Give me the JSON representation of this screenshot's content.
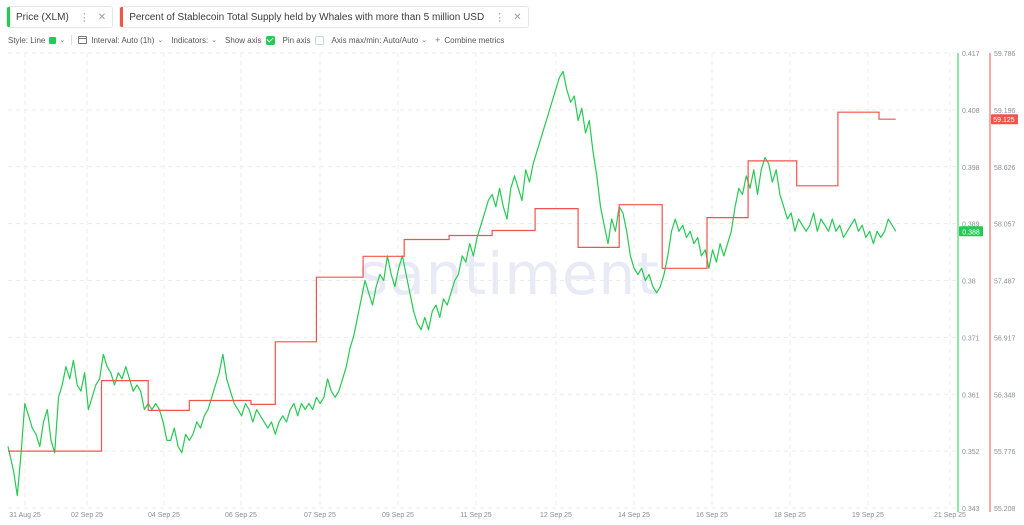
{
  "tabs": [
    {
      "label": "Price (XLM)",
      "color": "#26c953",
      "menu_icon": "kebab-icon",
      "close_icon": "close-icon"
    },
    {
      "label": "Percent of Stablecoin Total Supply held by Whales with more than 5 million USD",
      "color": "#f0554c",
      "menu_icon": "kebab-icon",
      "close_icon": "close-icon"
    }
  ],
  "toolbar": {
    "style_label": "Style: Line",
    "interval_label": "Interval: Auto (1h)",
    "indicators_label": "Indicators:",
    "show_axis_label": "Show axis",
    "show_axis_checked": true,
    "pin_axis_label": "Pin axis",
    "pin_axis_checked": false,
    "axis_minmax_label": "Axis max/min: Auto/Auto",
    "combine_label": "Combine metrics"
  },
  "watermark": "santiment",
  "chart_data": {
    "type": "line",
    "x_tick_labels": [
      "31 Aug 25",
      "02 Sep 25",
      "04 Sep 25",
      "06 Sep 25",
      "07 Sep 25",
      "09 Sep 25",
      "11 Sep 25",
      "12 Sep 25",
      "14 Sep 25",
      "16 Sep 25",
      "18 Sep 25",
      "19 Sep 25",
      "21 Sep 25"
    ],
    "x_range_hours": [
      0,
      504
    ],
    "y_left": {
      "ticks": [
        "0.417",
        "0.408",
        "0.398",
        "0.389",
        "0.38",
        "0.371",
        "0.361",
        "0.352",
        "0.343"
      ],
      "range": [
        0.343,
        0.417
      ]
    },
    "y_right": {
      "ticks": [
        "59.786",
        "59.196",
        "58.626",
        "58.057",
        "57.487",
        "56.917",
        "56.348",
        "55.776",
        "55.208"
      ],
      "range": [
        55.208,
        59.786
      ]
    },
    "current_price_label": "0.388",
    "current_whale_label": "59.125",
    "series": [
      {
        "name": "Price (XLM)",
        "color": "#26c953",
        "axis": "left",
        "hour_points": [
          [
            0,
            0.353
          ],
          [
            3,
            0.349
          ],
          [
            5,
            0.345
          ],
          [
            7,
            0.352
          ],
          [
            9,
            0.36
          ],
          [
            11,
            0.358
          ],
          [
            13,
            0.356
          ],
          [
            15,
            0.355
          ],
          [
            17,
            0.353
          ],
          [
            19,
            0.357
          ],
          [
            21,
            0.359
          ],
          [
            23,
            0.354
          ],
          [
            25,
            0.352
          ],
          [
            27,
            0.361
          ],
          [
            29,
            0.363
          ],
          [
            31,
            0.366
          ],
          [
            33,
            0.364
          ],
          [
            35,
            0.367
          ],
          [
            37,
            0.363
          ],
          [
            39,
            0.362
          ],
          [
            41,
            0.365
          ],
          [
            43,
            0.359
          ],
          [
            45,
            0.361
          ],
          [
            47,
            0.363
          ],
          [
            49,
            0.364
          ],
          [
            51,
            0.368
          ],
          [
            53,
            0.366
          ],
          [
            55,
            0.365
          ],
          [
            57,
            0.363
          ],
          [
            59,
            0.365
          ],
          [
            61,
            0.364
          ],
          [
            63,
            0.366
          ],
          [
            65,
            0.364
          ],
          [
            67,
            0.362
          ],
          [
            69,
            0.363
          ],
          [
            71,
            0.362
          ],
          [
            73,
            0.359
          ],
          [
            75,
            0.36
          ],
          [
            77,
            0.359
          ],
          [
            79,
            0.36
          ],
          [
            81,
            0.359
          ],
          [
            83,
            0.357
          ],
          [
            85,
            0.354
          ],
          [
            87,
            0.354
          ],
          [
            89,
            0.356
          ],
          [
            91,
            0.353
          ],
          [
            93,
            0.352
          ],
          [
            95,
            0.355
          ],
          [
            97,
            0.354
          ],
          [
            99,
            0.355
          ],
          [
            101,
            0.357
          ],
          [
            103,
            0.356
          ],
          [
            105,
            0.358
          ],
          [
            107,
            0.359
          ],
          [
            109,
            0.361
          ],
          [
            111,
            0.363
          ],
          [
            113,
            0.365
          ],
          [
            115,
            0.368
          ],
          [
            117,
            0.364
          ],
          [
            119,
            0.362
          ],
          [
            121,
            0.36
          ],
          [
            123,
            0.359
          ],
          [
            125,
            0.358
          ],
          [
            127,
            0.36
          ],
          [
            129,
            0.359
          ],
          [
            131,
            0.357
          ],
          [
            133,
            0.359
          ],
          [
            135,
            0.358
          ],
          [
            137,
            0.357
          ],
          [
            139,
            0.356
          ],
          [
            141,
            0.357
          ],
          [
            143,
            0.355
          ],
          [
            145,
            0.357
          ],
          [
            147,
            0.358
          ],
          [
            149,
            0.357
          ],
          [
            151,
            0.359
          ],
          [
            153,
            0.36
          ],
          [
            155,
            0.358
          ],
          [
            157,
            0.36
          ],
          [
            159,
            0.359
          ],
          [
            161,
            0.36
          ],
          [
            163,
            0.359
          ],
          [
            165,
            0.361
          ],
          [
            167,
            0.36
          ],
          [
            169,
            0.361
          ],
          [
            171,
            0.364
          ],
          [
            173,
            0.362
          ],
          [
            175,
            0.361
          ],
          [
            177,
            0.362
          ],
          [
            179,
            0.364
          ],
          [
            181,
            0.366
          ],
          [
            183,
            0.369
          ],
          [
            185,
            0.371
          ],
          [
            187,
            0.374
          ],
          [
            189,
            0.377
          ],
          [
            191,
            0.38
          ],
          [
            193,
            0.378
          ],
          [
            195,
            0.376
          ],
          [
            197,
            0.379
          ],
          [
            199,
            0.381
          ],
          [
            201,
            0.38
          ],
          [
            203,
            0.384
          ],
          [
            205,
            0.381
          ],
          [
            207,
            0.379
          ],
          [
            209,
            0.382
          ],
          [
            211,
            0.384
          ],
          [
            213,
            0.381
          ],
          [
            215,
            0.378
          ],
          [
            217,
            0.375
          ],
          [
            219,
            0.373
          ],
          [
            221,
            0.372
          ],
          [
            223,
            0.374
          ],
          [
            225,
            0.372
          ],
          [
            227,
            0.375
          ],
          [
            229,
            0.376
          ],
          [
            231,
            0.374
          ],
          [
            233,
            0.377
          ],
          [
            235,
            0.376
          ],
          [
            237,
            0.378
          ],
          [
            239,
            0.38
          ],
          [
            241,
            0.381
          ],
          [
            243,
            0.384
          ],
          [
            245,
            0.383
          ],
          [
            247,
            0.386
          ],
          [
            249,
            0.384
          ],
          [
            251,
            0.387
          ],
          [
            253,
            0.389
          ],
          [
            255,
            0.391
          ],
          [
            257,
            0.393
          ],
          [
            259,
            0.394
          ],
          [
            261,
            0.392
          ],
          [
            263,
            0.395
          ],
          [
            265,
            0.392
          ],
          [
            267,
            0.39
          ],
          [
            269,
            0.395
          ],
          [
            271,
            0.397
          ],
          [
            273,
            0.395
          ],
          [
            275,
            0.393
          ],
          [
            277,
            0.398
          ],
          [
            279,
            0.396
          ],
          [
            281,
            0.399
          ],
          [
            283,
            0.401
          ],
          [
            285,
            0.403
          ],
          [
            287,
            0.405
          ],
          [
            289,
            0.407
          ],
          [
            291,
            0.409
          ],
          [
            293,
            0.411
          ],
          [
            295,
            0.413
          ],
          [
            297,
            0.414
          ],
          [
            299,
            0.411
          ],
          [
            301,
            0.409
          ],
          [
            303,
            0.41
          ],
          [
            305,
            0.406
          ],
          [
            307,
            0.408
          ],
          [
            309,
            0.404
          ],
          [
            311,
            0.406
          ],
          [
            313,
            0.401
          ],
          [
            315,
            0.397
          ],
          [
            317,
            0.392
          ],
          [
            319,
            0.389
          ],
          [
            321,
            0.386
          ],
          [
            323,
            0.39
          ],
          [
            325,
            0.388
          ],
          [
            327,
            0.392
          ],
          [
            329,
            0.391
          ],
          [
            331,
            0.388
          ],
          [
            333,
            0.384
          ],
          [
            335,
            0.382
          ],
          [
            337,
            0.381
          ],
          [
            339,
            0.382
          ],
          [
            341,
            0.38
          ],
          [
            343,
            0.381
          ],
          [
            345,
            0.379
          ],
          [
            347,
            0.378
          ],
          [
            349,
            0.379
          ],
          [
            351,
            0.381
          ],
          [
            353,
            0.384
          ],
          [
            355,
            0.388
          ],
          [
            357,
            0.39
          ],
          [
            359,
            0.388
          ],
          [
            361,
            0.389
          ],
          [
            363,
            0.387
          ],
          [
            365,
            0.388
          ],
          [
            367,
            0.386
          ],
          [
            369,
            0.387
          ],
          [
            371,
            0.384
          ],
          [
            373,
            0.385
          ],
          [
            375,
            0.382
          ],
          [
            377,
            0.385
          ],
          [
            379,
            0.383
          ],
          [
            381,
            0.386
          ],
          [
            383,
            0.384
          ],
          [
            385,
            0.386
          ],
          [
            387,
            0.388
          ],
          [
            389,
            0.392
          ],
          [
            391,
            0.395
          ],
          [
            393,
            0.394
          ],
          [
            395,
            0.397
          ],
          [
            397,
            0.395
          ],
          [
            399,
            0.398
          ],
          [
            401,
            0.394
          ],
          [
            403,
            0.398
          ],
          [
            405,
            0.4
          ],
          [
            407,
            0.399
          ],
          [
            409,
            0.396
          ],
          [
            411,
            0.398
          ],
          [
            413,
            0.394
          ],
          [
            415,
            0.392
          ],
          [
            417,
            0.39
          ],
          [
            419,
            0.391
          ],
          [
            421,
            0.388
          ],
          [
            423,
            0.39
          ],
          [
            425,
            0.389
          ],
          [
            427,
            0.388
          ],
          [
            429,
            0.389
          ],
          [
            431,
            0.391
          ],
          [
            433,
            0.388
          ],
          [
            435,
            0.39
          ],
          [
            437,
            0.389
          ],
          [
            439,
            0.388
          ],
          [
            441,
            0.39
          ],
          [
            443,
            0.388
          ],
          [
            445,
            0.389
          ],
          [
            447,
            0.387
          ],
          [
            449,
            0.388
          ],
          [
            451,
            0.389
          ],
          [
            453,
            0.39
          ],
          [
            455,
            0.388
          ],
          [
            457,
            0.389
          ],
          [
            459,
            0.387
          ],
          [
            461,
            0.388
          ],
          [
            463,
            0.386
          ],
          [
            465,
            0.388
          ],
          [
            467,
            0.387
          ],
          [
            469,
            0.388
          ],
          [
            471,
            0.39
          ],
          [
            473,
            0.389
          ],
          [
            475,
            0.388
          ]
        ]
      },
      {
        "name": "Percent of Stablecoin Total Supply held by Whales with more than 5 million USD",
        "color": "#f0554c",
        "axis": "right",
        "step_points": [
          [
            0,
            55.78
          ],
          [
            50,
            55.78
          ],
          [
            50,
            56.49
          ],
          [
            75,
            56.49
          ],
          [
            75,
            56.19
          ],
          [
            97,
            56.19
          ],
          [
            97,
            56.29
          ],
          [
            130,
            56.29
          ],
          [
            130,
            56.25
          ],
          [
            143,
            56.25
          ],
          [
            143,
            56.88
          ],
          [
            165,
            56.88
          ],
          [
            165,
            57.53
          ],
          [
            190,
            57.53
          ],
          [
            190,
            57.74
          ],
          [
            212,
            57.74
          ],
          [
            212,
            57.91
          ],
          [
            236,
            57.91
          ],
          [
            236,
            57.95
          ],
          [
            259,
            57.95
          ],
          [
            259,
            58.0
          ],
          [
            282,
            58.0
          ],
          [
            282,
            58.22
          ],
          [
            305,
            58.22
          ],
          [
            305,
            57.83
          ],
          [
            327,
            57.83
          ],
          [
            327,
            58.26
          ],
          [
            350,
            58.26
          ],
          [
            350,
            57.62
          ],
          [
            374,
            57.62
          ],
          [
            374,
            58.13
          ],
          [
            396,
            58.13
          ],
          [
            396,
            58.7
          ],
          [
            422,
            58.7
          ],
          [
            422,
            58.45
          ],
          [
            444,
            58.45
          ],
          [
            444,
            59.19
          ],
          [
            466,
            59.19
          ],
          [
            466,
            59.12
          ],
          [
            475,
            59.12
          ]
        ]
      }
    ],
    "grid": true,
    "legend": "top-left"
  }
}
